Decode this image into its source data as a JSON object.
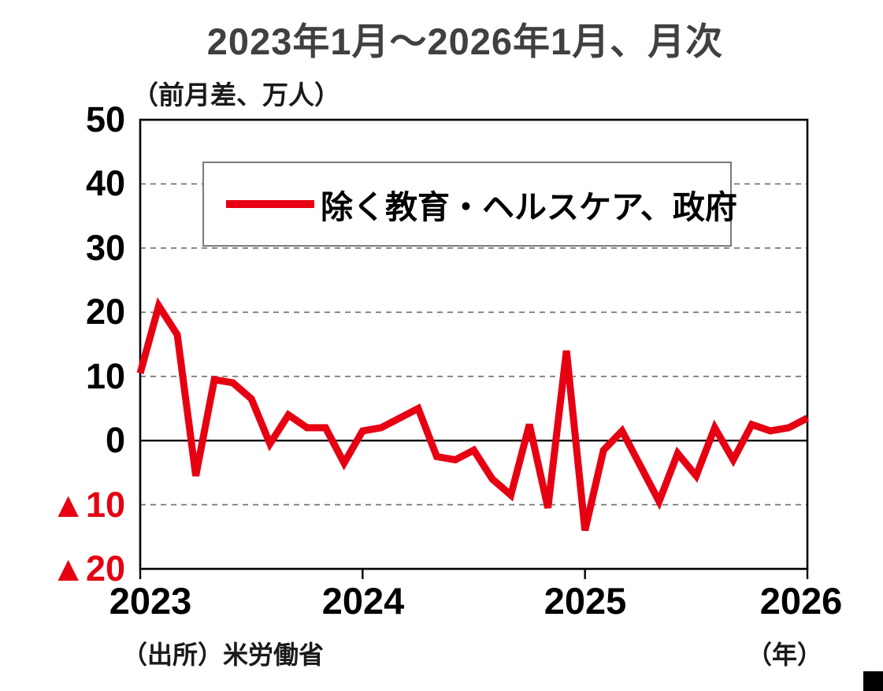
{
  "title": "2023年1月～2026年1月、月次",
  "y_axis": {
    "unit_label": "（前月差、万人）",
    "ticks": [
      {
        "label": "50",
        "value": 50
      },
      {
        "label": "40",
        "value": 40
      },
      {
        "label": "30",
        "value": 30
      },
      {
        "label": "20",
        "value": 20
      },
      {
        "label": "10",
        "value": 10
      },
      {
        "label": "0",
        "value": 0
      },
      {
        "label": "▲10",
        "value": -10
      },
      {
        "label": "▲20",
        "value": -20
      }
    ]
  },
  "x_axis": {
    "unit_label": "（年）",
    "ticks": [
      {
        "label": "2023",
        "month_index": 0
      },
      {
        "label": "2024",
        "month_index": 12
      },
      {
        "label": "2025",
        "month_index": 24
      },
      {
        "label": "2026",
        "month_index": 36
      }
    ]
  },
  "legend": {
    "label": "除く教育・ヘルスケア、政府"
  },
  "source": "（出所）米労働省",
  "colors": {
    "line": "#e60012",
    "negative_tick": "#e60012",
    "title": "#404040",
    "grid": "#6e6e6e",
    "axis": "#000000"
  },
  "chart_data": {
    "type": "line",
    "title": "2023年1月～2026年1月、月次",
    "ylabel": "（前月差、万人）",
    "xlabel": "（年）",
    "ylim": [
      -20,
      50
    ],
    "x_start": "2023-01",
    "x_end": "2026-01",
    "frequency": "monthly",
    "n_points": 37,
    "grid": "dashed-horizontal",
    "legend_position": "upper-center-inside",
    "series": [
      {
        "name": "除く教育・ヘルスケア、政府",
        "color": "#e60012",
        "values": [
          10.5,
          21,
          16.5,
          -5.5,
          9.5,
          9,
          6.5,
          -0.5,
          4,
          2,
          2,
          -3.5,
          1.5,
          2,
          3.5,
          5,
          -2.5,
          -3,
          -1.5,
          -6,
          -8.5,
          2.5,
          -10.5,
          14,
          -14,
          -1.5,
          1.5,
          -4,
          -9.5,
          -2,
          -5.5,
          2,
          -3,
          2.5,
          1.5,
          2,
          3.5
        ]
      }
    ]
  }
}
